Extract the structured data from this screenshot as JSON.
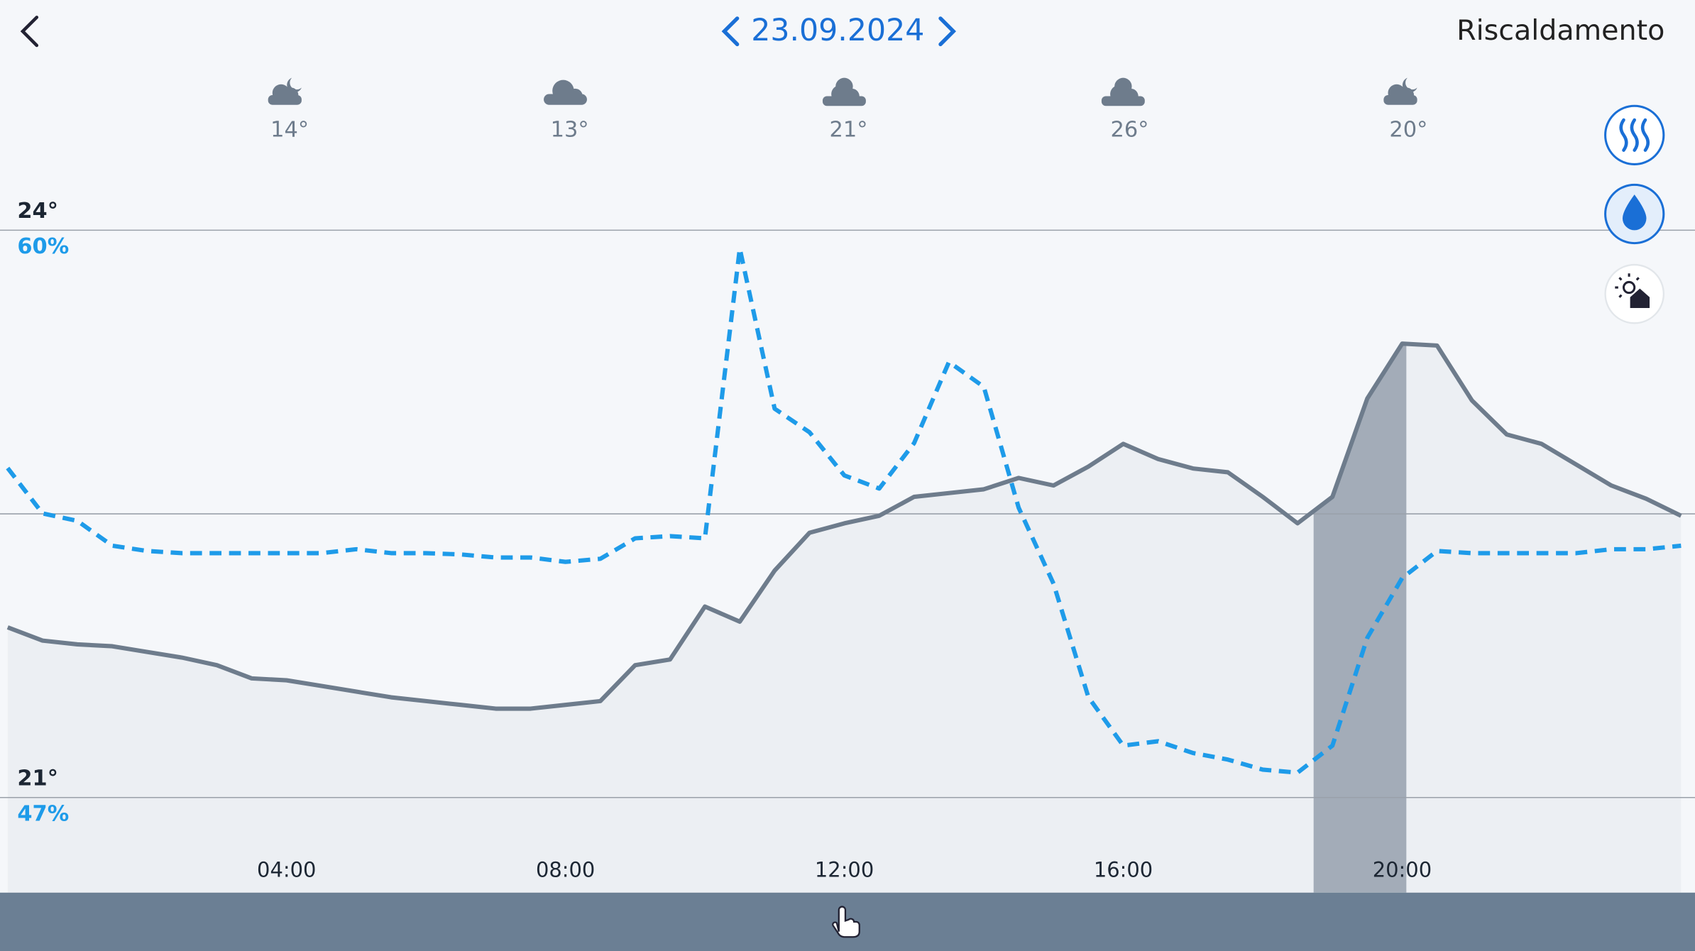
{
  "header": {
    "date": "23.09.2024",
    "title": "Riscaldamento"
  },
  "weather": [
    "14°",
    "13°",
    "21°",
    "26°",
    "20°"
  ],
  "chart_data": {
    "type": "line",
    "x": [
      0,
      0.5,
      1,
      1.5,
      2,
      2.5,
      3,
      3.5,
      4,
      4.5,
      5,
      5.5,
      6,
      6.5,
      7,
      7.5,
      8,
      8.5,
      9,
      9.5,
      10,
      10.5,
      11,
      11.5,
      12,
      12.5,
      13,
      13.5,
      14,
      14.5,
      15,
      15.5,
      16,
      16.5,
      17,
      17.5,
      18,
      18.5,
      19,
      19.5,
      20,
      20.5,
      21,
      21.5,
      22,
      22.5,
      23,
      23.5,
      24
    ],
    "xlim": [
      -0.11,
      24.2
    ],
    "xticks": [
      {
        "value": 4,
        "label": "04:00"
      },
      {
        "value": 8,
        "label": "08:00"
      },
      {
        "value": 12,
        "label": "12:00"
      },
      {
        "value": 16,
        "label": "16:00"
      },
      {
        "value": 20,
        "label": "20:00"
      }
    ],
    "ylim": [
      21,
      24
    ],
    "yticks": [
      {
        "value": 21,
        "label": "21°"
      },
      {
        "value": 24,
        "label": "24°"
      }
    ],
    "y2lim": [
      47,
      60
    ],
    "y2ticks": [
      {
        "value": 47,
        "label": "47%"
      },
      {
        "value": 60,
        "label": "60%"
      }
    ],
    "grid": true,
    "heating_periods": [
      [
        18.73,
        20.06
      ]
    ],
    "series": [
      {
        "color": "#6e7c8c",
        "style": "solid",
        "values": [
          21.9,
          21.83,
          21.81,
          21.8,
          21.77,
          21.74,
          21.7,
          21.63,
          21.62,
          21.59,
          21.56,
          21.53,
          21.51,
          21.49,
          21.47,
          21.47,
          21.49,
          21.51,
          21.7,
          21.73,
          22.01,
          21.93,
          22.2,
          22.4,
          22.45,
          22.49,
          22.59,
          22.61,
          22.63,
          22.69,
          22.65,
          22.75,
          22.87,
          22.79,
          22.74,
          22.72,
          22.59,
          22.45,
          22.59,
          23.11,
          23.4,
          23.39,
          23.1,
          22.92,
          22.87,
          22.76,
          22.65,
          22.58,
          22.49
        ]
      },
      {
        "color": "#1e9be9",
        "style": "dashed",
        "axis": "y2",
        "values": [
          54.55,
          53.51,
          53.34,
          52.77,
          52.65,
          52.6,
          52.6,
          52.6,
          52.6,
          52.6,
          52.69,
          52.6,
          52.6,
          52.57,
          52.5,
          52.5,
          52.4,
          52.47,
          52.94,
          52.99,
          52.94,
          59.58,
          55.91,
          55.37,
          54.38,
          54.08,
          55.12,
          56.98,
          56.41,
          53.64,
          51.9,
          49.3,
          48.19,
          48.29,
          48.02,
          47.87,
          47.64,
          47.57,
          48.19,
          50.66,
          52.03,
          52.65,
          52.6,
          52.6,
          52.6,
          52.6,
          52.69,
          52.69,
          52.77
        ]
      }
    ]
  }
}
